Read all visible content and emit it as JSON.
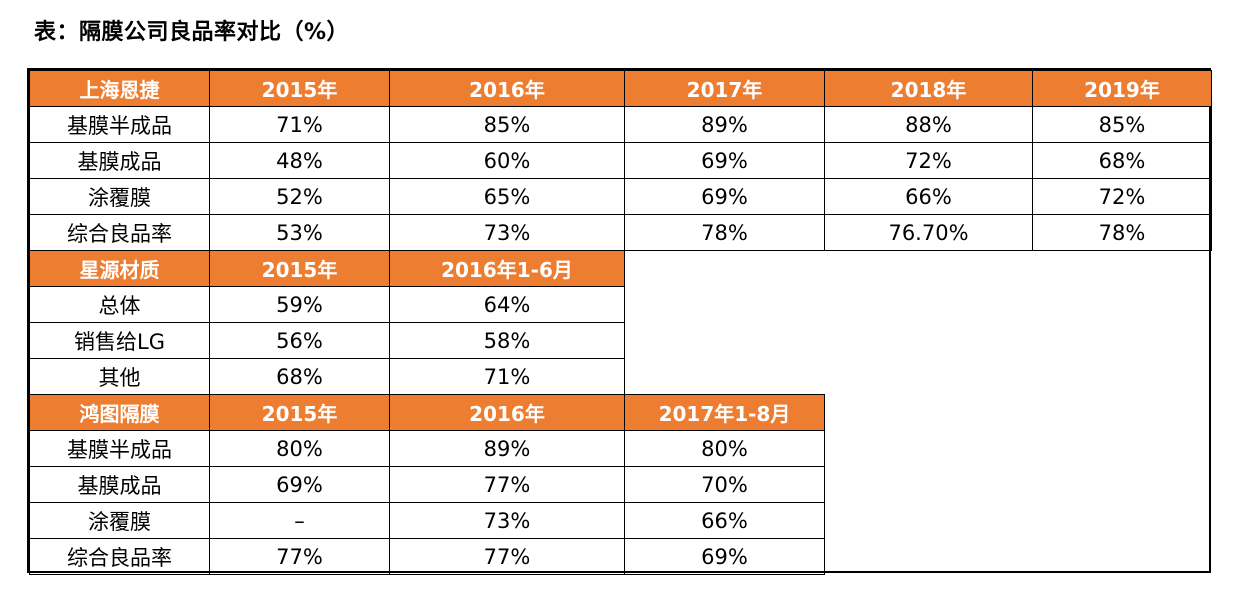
{
  "title": "表：隔膜公司良品率对比（%）",
  "colors": {
    "header_bg": "#ED7D31",
    "header_text": "#FFFFFF",
    "border": "#000000"
  },
  "sections": [
    {
      "company": "上海恩捷",
      "columns": [
        "2015年",
        "2016年",
        "2017年",
        "2018年",
        "2019年"
      ],
      "rows": [
        {
          "label": "基膜半成品",
          "values": [
            "71%",
            "85%",
            "89%",
            "88%",
            "85%"
          ]
        },
        {
          "label": "基膜成品",
          "values": [
            "48%",
            "60%",
            "69%",
            "72%",
            "68%"
          ]
        },
        {
          "label": "涂覆膜",
          "values": [
            "52%",
            "65%",
            "69%",
            "66%",
            "72%"
          ]
        },
        {
          "label": "综合良品率",
          "values": [
            "53%",
            "73%",
            "78%",
            "76.70%",
            "78%"
          ]
        }
      ]
    },
    {
      "company": "星源材质",
      "columns": [
        "2015年",
        "2016年1-6月"
      ],
      "rows": [
        {
          "label": "总体",
          "values": [
            "59%",
            "64%"
          ]
        },
        {
          "label": "销售给LG",
          "values": [
            "56%",
            "58%"
          ]
        },
        {
          "label": "其他",
          "values": [
            "68%",
            "71%"
          ]
        }
      ]
    },
    {
      "company": "鸿图隔膜",
      "columns": [
        "2015年",
        "2016年",
        "2017年1-8月"
      ],
      "rows": [
        {
          "label": "基膜半成品",
          "values": [
            "80%",
            "89%",
            "80%"
          ]
        },
        {
          "label": "基膜成品",
          "values": [
            "69%",
            "77%",
            "70%"
          ]
        },
        {
          "label": "涂覆膜",
          "values": [
            "–",
            "73%",
            "66%"
          ]
        },
        {
          "label": "综合良品率",
          "values": [
            "77%",
            "77%",
            "69%"
          ]
        }
      ]
    }
  ]
}
